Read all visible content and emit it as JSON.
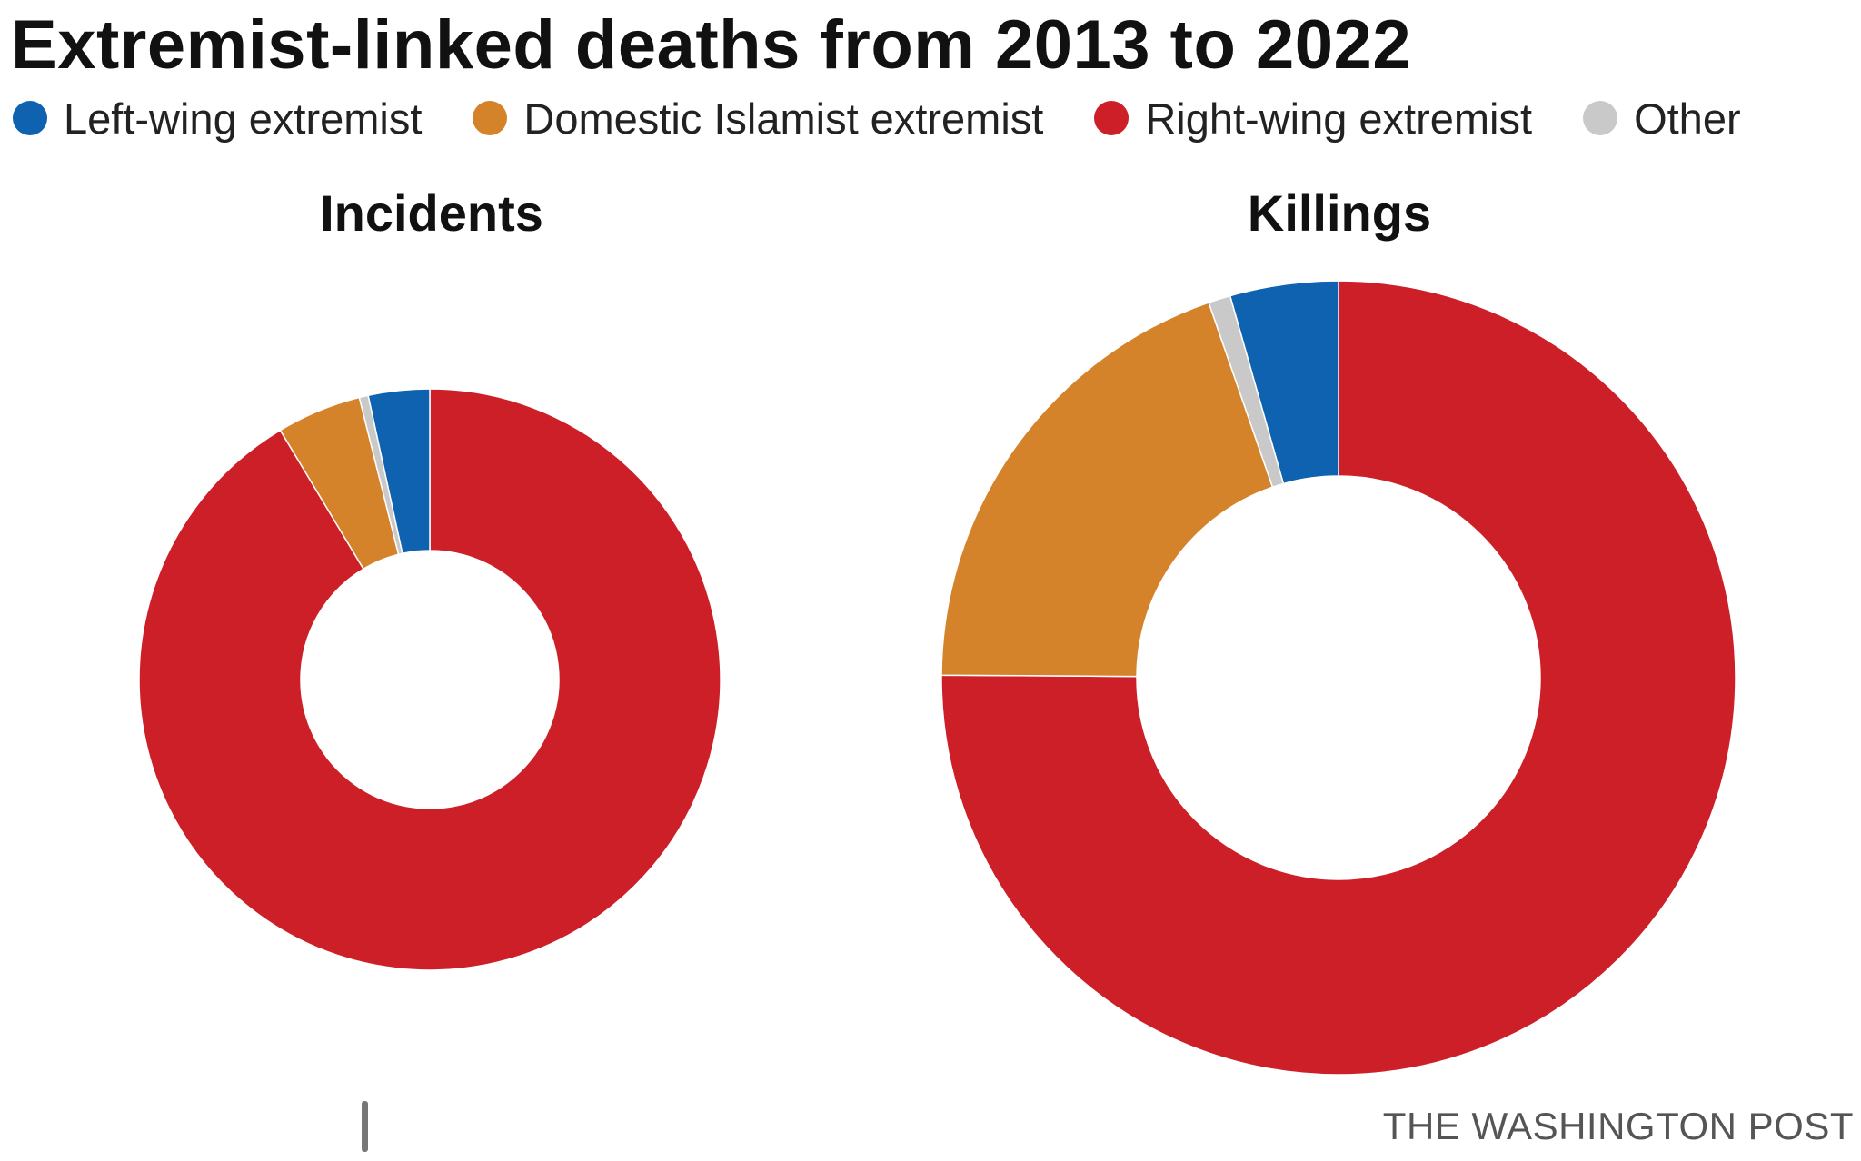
{
  "title": "Extremist-linked deaths from 2013 to 2022",
  "source": "THE WASHINGTON POST",
  "legend": [
    {
      "label": "Left-wing extremist",
      "color": "#0e62b0"
    },
    {
      "label": "Domestic Islamist extremist",
      "color": "#d4832a"
    },
    {
      "label": "Right-wing extremist",
      "color": "#cc1f28"
    },
    {
      "label": "Other",
      "color": "#c9c9c9"
    }
  ],
  "chart_data": [
    {
      "type": "pie",
      "title": "Incidents",
      "categories": [
        "Right-wing extremist",
        "Domestic Islamist extremist",
        "Other",
        "Left-wing extremist"
      ],
      "values": [
        91.4,
        4.7,
        0.5,
        3.4
      ],
      "colors": [
        "#cc1f28",
        "#d4832a",
        "#c9c9c9",
        "#0e62b0"
      ],
      "unit": "percent"
    },
    {
      "type": "pie",
      "title": "Killings",
      "categories": [
        "Right-wing extremist",
        "Domestic Islamist extremist",
        "Other",
        "Left-wing extremist"
      ],
      "values": [
        75.1,
        19.6,
        0.9,
        4.4
      ],
      "colors": [
        "#cc1f28",
        "#d4832a",
        "#c9c9c9",
        "#0e62b0"
      ],
      "unit": "percent"
    }
  ]
}
